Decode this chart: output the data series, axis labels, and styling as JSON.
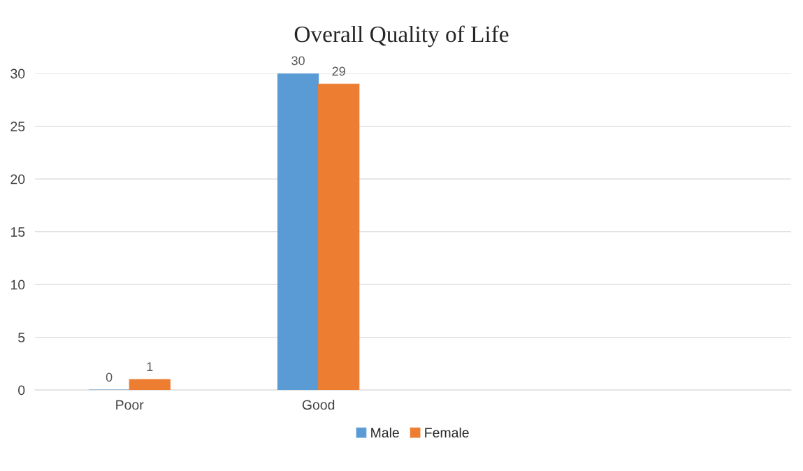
{
  "chart_data": {
    "type": "bar",
    "title": "Overall Quality of Life",
    "categories": [
      "Poor",
      "Good",
      null,
      null
    ],
    "series": [
      {
        "name": "Male",
        "color": "#5b9bd5",
        "values": [
          0,
          30,
          null,
          null
        ]
      },
      {
        "name": "Female",
        "color": "#ed7d31",
        "values": [
          1,
          29,
          null,
          null
        ]
      }
    ],
    "ylim": [
      0,
      30
    ],
    "yticks": [
      0,
      5,
      10,
      15,
      20,
      25,
      30
    ],
    "grid": "y",
    "legend": "bottom",
    "data_labels": true
  }
}
